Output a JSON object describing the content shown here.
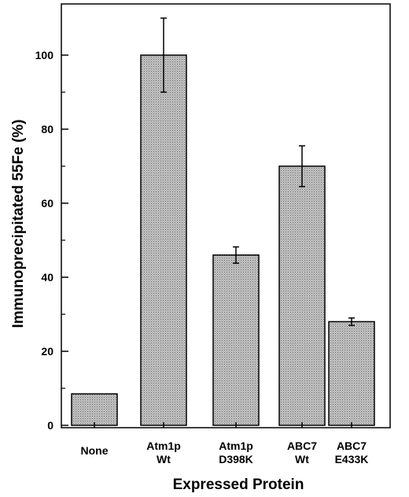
{
  "chart_data": {
    "type": "bar",
    "categories": [
      [
        "None"
      ],
      [
        "Atm1p",
        "Wt"
      ],
      [
        "Atm1p",
        "D398K"
      ],
      [
        "ABC7",
        "Wt"
      ],
      [
        "ABC7",
        "E433K"
      ]
    ],
    "values": [
      8.5,
      100,
      46,
      70,
      28
    ],
    "error_upper": [
      0,
      10,
      2.2,
      5.5,
      1.0
    ],
    "error_lower": [
      0,
      10,
      2.2,
      5.5,
      1.0
    ],
    "xlabel": "Expressed Protein",
    "ylabel": "Immunoprecipitated 55Fe (%)",
    "yticks": [
      0,
      20,
      40,
      60,
      80,
      100
    ],
    "ylim": [
      0,
      112
    ],
    "grid": false,
    "legend": "none",
    "bar_fill": "#b8b8b8",
    "bar_stroke": "#000000"
  }
}
